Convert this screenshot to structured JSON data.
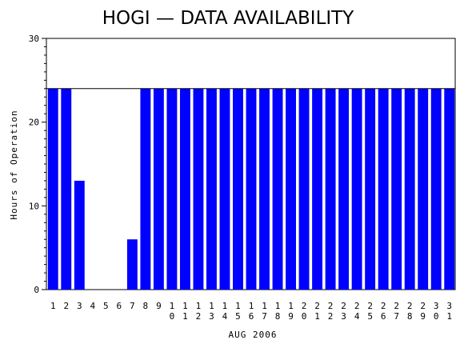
{
  "chart_data": {
    "type": "bar",
    "title": "HOGI — DATA AVAILABILITY",
    "xlabel": "AUG 2006",
    "ylabel": "Hours of Operation",
    "ylim": [
      0,
      30
    ],
    "yticks": [
      0,
      10,
      20,
      30
    ],
    "grid": false,
    "bar_color": "#0000ff",
    "categories": [
      "1",
      "2",
      "3",
      "4",
      "5",
      "6",
      "7",
      "8",
      "9",
      "10",
      "11",
      "12",
      "13",
      "14",
      "15",
      "16",
      "17",
      "18",
      "19",
      "20",
      "21",
      "22",
      "23",
      "24",
      "25",
      "26",
      "27",
      "28",
      "29",
      "30",
      "31"
    ],
    "values": [
      24,
      24,
      13,
      0,
      0,
      0,
      6,
      24,
      24,
      24,
      24,
      24,
      24,
      24,
      24,
      24,
      24,
      24,
      24,
      24,
      24,
      24,
      24,
      24,
      24,
      24,
      24,
      24,
      24,
      24,
      24
    ],
    "reference_line": 24
  }
}
